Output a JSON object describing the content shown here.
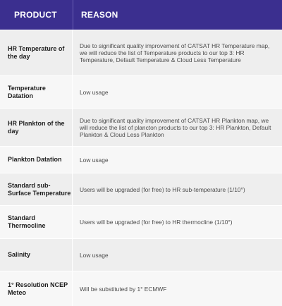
{
  "header": {
    "product": "PRODUCT",
    "reason": "REASON"
  },
  "rows": [
    {
      "product": "HR Temperature of the day",
      "reason": "Due to significant quality improvement of CATSAT HR Temperature map, we will reduce the list of Temperature products to our top 3: HR Temperature, Default Temperature & Cloud Less Temperature"
    },
    {
      "product": "Temperature Datation",
      "reason": "Low usage"
    },
    {
      "product": "HR Plankton of the day",
      "reason": "Due to significant quality improvement of CATSAT HR Plankton map, we will reduce the list of plancton products to our top 3: HR Plankton, Default Plankton & Cloud Less Plankton"
    },
    {
      "product": "Plankton Datation",
      "reason": "Low usage"
    },
    {
      "product": "Standard sub-Surface Temperature",
      "reason": "Users will be upgraded (for free) to HR sub-temperature (1/10°)"
    },
    {
      "product": "Standard Thermocline",
      "reason": "Users will be upgraded (for free) to HR thermocline (1/10°)"
    },
    {
      "product": "Salinity",
      "reason": "Low usage"
    },
    {
      "product": "1° Resolution NCEP Meteo",
      "reason": "Will be substituted by 1° ECMWF"
    }
  ],
  "colors": {
    "header_bg": "#3b2f8f",
    "row_bg_a": "#eeeeee",
    "row_bg_b": "#f7f7f7"
  }
}
